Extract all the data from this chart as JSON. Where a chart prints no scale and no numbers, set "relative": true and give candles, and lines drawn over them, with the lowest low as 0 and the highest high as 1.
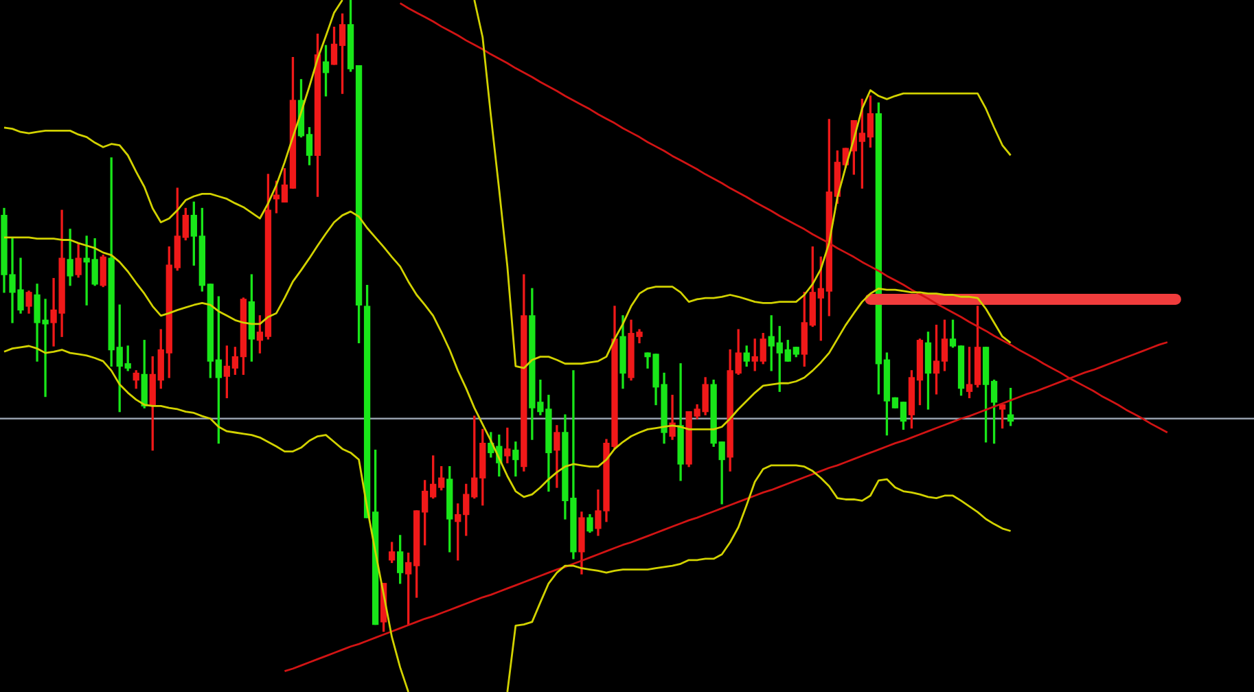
{
  "chart_data": {
    "type": "candlestick",
    "relative": true,
    "categories": [
      null,
      null,
      null,
      null,
      null,
      null,
      null,
      null,
      null,
      null,
      null,
      null,
      null,
      null,
      null,
      null,
      null,
      null,
      null,
      null,
      null,
      null,
      null,
      null,
      null,
      null,
      null,
      null,
      null,
      null,
      null,
      null,
      null,
      null,
      null,
      null,
      null,
      null,
      null,
      null,
      null,
      null,
      null,
      null,
      null,
      null,
      null,
      null,
      null,
      null,
      null,
      null,
      null,
      null,
      null,
      null,
      null,
      null,
      null,
      null,
      null,
      null,
      null,
      null,
      null,
      null,
      null,
      null,
      null,
      null,
      null,
      null,
      null,
      null,
      null,
      null,
      null,
      null,
      null,
      null,
      null,
      null,
      null,
      null,
      null,
      null,
      null,
      null,
      null,
      null,
      null,
      null,
      null,
      null,
      null,
      null,
      null,
      null,
      null,
      null,
      null,
      null,
      null,
      null,
      null,
      null,
      null,
      null,
      null,
      null,
      null,
      null,
      null,
      null,
      null,
      null,
      null,
      null,
      null,
      null,
      null,
      null,
      null,
      null,
      null,
      null,
      null,
      null,
      null,
      null,
      null,
      null,
      null,
      null,
      null,
      null,
      null,
      null,
      null,
      null,
      null,
      null,
      null,
      null,
      null,
      null,
      null,
      null,
      null,
      null,
      null,
      null
    ],
    "ohlc": [
      [
        0.659,
        0.67,
        0.537,
        0.565
      ],
      [
        0.565,
        0.624,
        0.489,
        0.537
      ],
      [
        0.541,
        0.591,
        0.504,
        0.509
      ],
      [
        0.515,
        0.539,
        0.504,
        0.537
      ],
      [
        0.533,
        0.55,
        0.428,
        0.489
      ],
      [
        0.493,
        0.526,
        0.372,
        0.487
      ],
      [
        0.489,
        0.559,
        0.452,
        0.509
      ],
      [
        0.504,
        0.667,
        0.467,
        0.591
      ],
      [
        0.589,
        0.637,
        0.548,
        0.563
      ],
      [
        0.565,
        0.613,
        0.561,
        0.591
      ],
      [
        0.591,
        0.626,
        0.517,
        0.585
      ],
      [
        0.589,
        0.622,
        0.548,
        0.55
      ],
      [
        0.548,
        0.596,
        0.546,
        0.593
      ],
      [
        0.591,
        0.75,
        0.42,
        0.446
      ],
      [
        0.45,
        0.517,
        0.348,
        0.42
      ],
      [
        0.424,
        0.452,
        0.413,
        0.417
      ],
      [
        0.398,
        0.413,
        0.385,
        0.409
      ],
      [
        0.407,
        0.461,
        0.354,
        0.357
      ],
      [
        0.357,
        0.435,
        0.287,
        0.407
      ],
      [
        0.398,
        0.478,
        0.385,
        0.446
      ],
      [
        0.441,
        0.609,
        0.402,
        0.58
      ],
      [
        0.576,
        0.702,
        0.572,
        0.626
      ],
      [
        0.624,
        0.67,
        0.62,
        0.659
      ],
      [
        0.659,
        0.68,
        0.58,
        0.626
      ],
      [
        0.626,
        0.67,
        0.539,
        0.548
      ],
      [
        0.55,
        0.55,
        0.402,
        0.428
      ],
      [
        0.43,
        0.53,
        0.298,
        0.402
      ],
      [
        0.404,
        0.452,
        0.37,
        0.42
      ],
      [
        0.417,
        0.45,
        0.407,
        0.435
      ],
      [
        0.435,
        0.528,
        0.407,
        0.526
      ],
      [
        0.522,
        0.565,
        0.428,
        0.463
      ],
      [
        0.461,
        0.5,
        0.441,
        0.474
      ],
      [
        0.467,
        0.724,
        0.463,
        0.667
      ],
      [
        0.685,
        0.713,
        0.663,
        0.691
      ],
      [
        0.68,
        0.733,
        0.68,
        0.707
      ],
      [
        0.702,
        0.909,
        0.702,
        0.841
      ],
      [
        0.841,
        0.874,
        0.783,
        0.785
      ],
      [
        0.787,
        0.798,
        0.739,
        0.754
      ],
      [
        0.754,
        0.946,
        0.689,
        0.913
      ],
      [
        0.902,
        0.928,
        0.848,
        0.885
      ],
      [
        0.898,
        0.957,
        0.898,
        0.93
      ],
      [
        0.928,
        0.978,
        0.852,
        0.961
      ],
      [
        0.961,
        1.0,
        0.887,
        0.891
      ],
      [
        0.896,
        0.896,
        0.457,
        0.517
      ],
      [
        0.515,
        0.548,
        0.18,
        0.18
      ],
      [
        0.189,
        0.287,
        0.011,
        0.011
      ],
      [
        0.015,
        0.076,
        0.0,
        0.076
      ],
      [
        0.113,
        0.141,
        0.109,
        0.126
      ],
      [
        0.126,
        0.152,
        0.076,
        0.093
      ],
      [
        0.091,
        0.124,
        0.011,
        0.109
      ],
      [
        0.104,
        0.191,
        0.054,
        0.191
      ],
      [
        0.189,
        0.239,
        0.137,
        0.222
      ],
      [
        0.213,
        0.278,
        0.211,
        0.233
      ],
      [
        0.228,
        0.261,
        0.224,
        0.243
      ],
      [
        0.241,
        0.261,
        0.126,
        0.178
      ],
      [
        0.174,
        0.202,
        0.113,
        0.185
      ],
      [
        0.185,
        0.233,
        0.152,
        0.217
      ],
      [
        0.213,
        0.341,
        0.211,
        0.243
      ],
      [
        0.243,
        0.32,
        0.2,
        0.298
      ],
      [
        0.298,
        0.315,
        0.276,
        0.283
      ],
      [
        0.293,
        0.311,
        0.246,
        0.267
      ],
      [
        0.278,
        0.322,
        0.267,
        0.289
      ],
      [
        0.287,
        0.3,
        0.246,
        0.272
      ],
      [
        0.261,
        0.565,
        0.254,
        0.5
      ],
      [
        0.5,
        0.543,
        0.304,
        0.354
      ],
      [
        0.363,
        0.398,
        0.343,
        0.348
      ],
      [
        0.352,
        0.374,
        0.222,
        0.283
      ],
      [
        0.287,
        0.326,
        0.228,
        0.315
      ],
      [
        0.315,
        0.343,
        0.178,
        0.207
      ],
      [
        0.211,
        0.413,
        0.115,
        0.126
      ],
      [
        0.126,
        0.189,
        0.091,
        0.18
      ],
      [
        0.18,
        0.185,
        0.157,
        0.159
      ],
      [
        0.163,
        0.224,
        0.152,
        0.191
      ],
      [
        0.191,
        0.304,
        0.174,
        0.298
      ],
      [
        0.293,
        0.515,
        0.289,
        0.463
      ],
      [
        0.467,
        0.5,
        0.385,
        0.409
      ],
      [
        0.402,
        0.493,
        0.398,
        0.472
      ],
      [
        0.467,
        0.478,
        0.457,
        0.474
      ],
      [
        0.441,
        0.441,
        0.417,
        0.435
      ],
      [
        0.439,
        0.439,
        0.359,
        0.387
      ],
      [
        0.391,
        0.409,
        0.298,
        0.315
      ],
      [
        0.309,
        0.374,
        0.304,
        0.33
      ],
      [
        0.326,
        0.424,
        0.239,
        0.265
      ],
      [
        0.265,
        0.348,
        0.261,
        0.348
      ],
      [
        0.341,
        0.359,
        0.337,
        0.352
      ],
      [
        0.348,
        0.402,
        0.343,
        0.391
      ],
      [
        0.391,
        0.398,
        0.293,
        0.298
      ],
      [
        0.3,
        0.3,
        0.202,
        0.272
      ],
      [
        0.276,
        0.446,
        0.254,
        0.413
      ],
      [
        0.409,
        0.478,
        0.407,
        0.441
      ],
      [
        0.441,
        0.452,
        0.42,
        0.428
      ],
      [
        0.428,
        0.463,
        0.413,
        0.435
      ],
      [
        0.428,
        0.472,
        0.424,
        0.463
      ],
      [
        0.467,
        0.5,
        0.413,
        0.452
      ],
      [
        0.457,
        0.483,
        0.38,
        0.441
      ],
      [
        0.446,
        0.461,
        0.428,
        0.428
      ],
      [
        0.45,
        0.45,
        0.435,
        0.439
      ],
      [
        0.439,
        0.537,
        0.42,
        0.489
      ],
      [
        0.485,
        0.609,
        0.483,
        0.537
      ],
      [
        0.528,
        0.593,
        0.461,
        0.543
      ],
      [
        0.539,
        0.811,
        0.5,
        0.696
      ],
      [
        0.689,
        0.761,
        0.678,
        0.743
      ],
      [
        0.739,
        0.765,
        0.735,
        0.765
      ],
      [
        0.761,
        0.809,
        0.724,
        0.809
      ],
      [
        0.776,
        0.843,
        0.702,
        0.789
      ],
      [
        0.783,
        0.848,
        0.767,
        0.82
      ],
      [
        0.82,
        0.837,
        0.376,
        0.424
      ],
      [
        0.43,
        0.441,
        0.311,
        0.365
      ],
      [
        0.37,
        0.37,
        0.354,
        0.354
      ],
      [
        0.363,
        0.363,
        0.32,
        0.333
      ],
      [
        0.343,
        0.413,
        0.322,
        0.402
      ],
      [
        0.398,
        0.463,
        0.359,
        0.461
      ],
      [
        0.457,
        0.474,
        0.352,
        0.409
      ],
      [
        0.409,
        0.485,
        0.376,
        0.428
      ],
      [
        0.428,
        0.493,
        0.413,
        0.463
      ],
      [
        0.463,
        0.493,
        0.45,
        0.452
      ],
      [
        0.452,
        0.452,
        0.374,
        0.385
      ],
      [
        0.38,
        0.45,
        0.37,
        0.391
      ],
      [
        0.391,
        0.515,
        0.387,
        0.45
      ],
      [
        0.45,
        0.45,
        0.3,
        0.391
      ],
      [
        0.396,
        0.398,
        0.298,
        0.363
      ],
      [
        0.352,
        0.359,
        0.322,
        0.359
      ],
      [
        0.343,
        0.385,
        0.326,
        0.333
      ],
      null,
      null,
      null,
      null,
      null,
      null,
      null,
      null,
      null,
      null,
      null,
      null,
      null,
      null,
      null,
      null,
      null,
      null,
      null,
      null,
      null,
      null,
      null,
      null,
      null,
      null,
      null,
      null,
      null
    ],
    "colors": [
      "#19e619",
      "#19e619",
      "#19e619",
      "#f01919",
      "#19e619",
      "#19e619",
      "#f01919",
      "#f01919",
      "#19e619",
      "#f01919",
      "#19e619",
      "#19e619",
      "#f01919",
      "#19e619",
      "#19e619",
      "#19e619",
      "#f01919",
      "#19e619",
      "#f01919",
      "#f01919",
      "#f01919",
      "#f01919",
      "#f01919",
      "#19e619",
      "#19e619",
      "#19e619",
      "#19e619",
      "#f01919",
      "#f01919",
      "#f01919",
      "#19e619",
      "#f01919",
      "#f01919",
      "#f01919",
      "#f01919",
      "#f01919",
      "#19e619",
      "#19e619",
      "#f01919",
      "#19e619",
      "#f01919",
      "#f01919",
      "#19e619",
      "#19e619",
      "#19e619",
      "#19e619",
      "#f01919",
      "#f01919",
      "#19e619",
      "#f01919",
      "#f01919",
      "#f01919",
      "#f01919",
      "#f01919",
      "#19e619",
      "#f01919",
      "#f01919",
      "#f01919",
      "#f01919",
      "#19e619",
      "#19e619",
      "#f01919",
      "#19e619",
      "#f01919",
      "#19e619",
      "#19e619",
      "#19e619",
      "#f01919",
      "#19e619",
      "#19e619",
      "#f01919",
      "#19e619",
      "#f01919",
      "#f01919",
      "#f01919",
      "#19e619",
      "#f01919",
      "#f01919",
      "#19e619",
      "#19e619",
      "#19e619",
      "#f01919",
      "#19e619",
      "#f01919",
      "#f01919",
      "#f01919",
      "#19e619",
      "#19e619",
      "#f01919",
      "#f01919",
      "#19e619",
      "#f01919",
      "#f01919",
      "#19e619",
      "#19e619",
      "#19e619",
      "#19e619",
      "#f01919",
      "#f01919",
      "#f01919",
      "#f01919",
      "#f01919",
      "#f01919",
      "#f01919",
      "#f01919",
      "#f01919",
      "#19e619",
      "#19e619",
      "#19e619",
      "#19e619",
      "#f01919",
      "#f01919",
      "#19e619",
      "#f01919",
      "#f01919",
      "#19e619",
      "#19e619",
      "#f01919",
      "#f01919",
      "#19e619",
      "#19e619",
      "#f01919",
      "#19e619",
      null,
      null,
      null,
      null,
      null,
      null,
      null,
      null,
      null,
      null,
      null,
      null,
      null,
      null,
      null,
      null,
      null,
      null,
      null,
      null,
      null,
      null,
      null,
      null,
      null,
      null,
      null,
      null,
      null
    ],
    "series": [
      {
        "type": "line",
        "color": "#d2d200",
        "values": [
          0.798,
          0.796,
          0.791,
          0.789,
          0.791,
          0.793,
          0.793,
          0.793,
          0.793,
          0.787,
          0.783,
          0.774,
          0.767,
          0.772,
          0.77,
          0.754,
          0.728,
          0.704,
          0.67,
          0.648,
          0.654,
          0.667,
          0.683,
          0.689,
          0.693,
          0.693,
          0.689,
          0.685,
          0.678,
          0.672,
          0.663,
          0.654,
          0.678,
          0.707,
          0.743,
          0.783,
          0.822,
          0.863,
          0.907,
          0.943,
          0.98,
          1.0,
          null,
          null,
          null,
          null,
          null,
          null,
          null,
          null,
          null,
          null,
          null,
          null,
          null,
          null,
          null,
          1.0,
          0.941,
          0.817,
          0.7,
          0.578,
          0.42,
          0.417,
          0.43,
          0.435,
          0.435,
          0.43,
          0.424,
          0.424,
          0.424,
          0.426,
          0.428,
          0.435,
          0.463,
          0.487,
          0.515,
          0.535,
          0.543,
          0.546,
          0.546,
          0.546,
          0.537,
          0.522,
          0.526,
          0.528,
          0.528,
          0.53,
          0.533,
          0.53,
          0.526,
          0.522,
          0.52,
          0.52,
          0.522,
          0.522,
          0.522,
          0.533,
          0.55,
          0.574,
          0.615,
          0.687,
          0.735,
          0.78,
          0.828,
          0.857,
          0.848,
          0.843,
          0.848,
          0.852,
          0.852,
          0.852,
          0.852,
          0.852,
          0.852,
          0.852,
          0.852,
          0.852,
          0.852,
          0.828,
          0.798,
          0.77,
          0.754,
          null,
          null,
          null,
          null,
          null,
          null,
          null,
          null,
          null,
          null,
          null,
          null,
          null,
          null,
          null,
          null,
          null,
          null,
          null,
          null,
          null,
          null,
          null,
          null,
          null,
          null,
          null,
          null,
          null
        ]
      },
      {
        "type": "line",
        "color": "#d2d200",
        "values": [
          0.624,
          0.624,
          0.624,
          0.624,
          0.622,
          0.622,
          0.622,
          0.62,
          0.62,
          0.615,
          0.611,
          0.607,
          0.6,
          0.596,
          0.585,
          0.57,
          0.552,
          0.535,
          0.515,
          0.5,
          0.504,
          0.509,
          0.513,
          0.517,
          0.52,
          0.517,
          0.507,
          0.5,
          0.493,
          0.489,
          0.487,
          0.487,
          0.498,
          0.504,
          0.528,
          0.554,
          0.572,
          0.591,
          0.611,
          0.63,
          0.648,
          0.659,
          0.665,
          0.657,
          0.639,
          0.624,
          0.609,
          0.593,
          0.578,
          0.554,
          0.533,
          0.517,
          0.5,
          0.474,
          0.446,
          0.413,
          0.385,
          0.354,
          0.328,
          0.302,
          0.274,
          0.246,
          0.222,
          0.213,
          0.217,
          0.228,
          0.241,
          0.252,
          0.261,
          0.265,
          0.263,
          0.261,
          0.261,
          0.272,
          0.289,
          0.3,
          0.309,
          0.315,
          0.32,
          0.322,
          0.324,
          0.326,
          0.324,
          0.32,
          0.32,
          0.32,
          0.32,
          0.324,
          0.337,
          0.352,
          0.365,
          0.378,
          0.389,
          0.391,
          0.393,
          0.393,
          0.396,
          0.402,
          0.413,
          0.426,
          0.441,
          0.463,
          0.485,
          0.504,
          0.522,
          0.535,
          0.543,
          0.541,
          0.541,
          0.539,
          0.537,
          0.537,
          0.535,
          0.535,
          0.533,
          0.533,
          0.53,
          0.53,
          0.528,
          0.511,
          0.489,
          0.467,
          0.457,
          null,
          null,
          null,
          null,
          null,
          null,
          null,
          null,
          null,
          null,
          null,
          null,
          null,
          null,
          null,
          null,
          null,
          null,
          null,
          null,
          null,
          null,
          null,
          null,
          null,
          null,
          null,
          null,
          null
        ]
      },
      {
        "type": "line",
        "color": "#d2d200",
        "values": [
          0.443,
          0.448,
          0.45,
          0.452,
          0.448,
          0.441,
          0.443,
          0.446,
          0.441,
          0.439,
          0.437,
          0.433,
          0.428,
          0.413,
          0.391,
          0.378,
          0.367,
          0.359,
          0.357,
          0.357,
          0.354,
          0.352,
          0.348,
          0.346,
          0.341,
          0.337,
          0.324,
          0.317,
          0.315,
          0.313,
          0.311,
          0.307,
          0.3,
          0.293,
          0.285,
          0.285,
          0.291,
          0.302,
          0.309,
          0.311,
          0.3,
          0.289,
          0.283,
          0.272,
          0.196,
          0.126,
          0.059,
          -0.009,
          -0.057,
          -0.096,
          null,
          null,
          null,
          null,
          null,
          null,
          null,
          null,
          null,
          null,
          null,
          -0.096,
          0.009,
          0.011,
          0.015,
          0.046,
          0.076,
          0.093,
          0.104,
          0.104,
          0.1,
          0.098,
          0.096,
          0.093,
          0.096,
          0.098,
          0.098,
          0.098,
          0.098,
          0.1,
          0.102,
          0.104,
          0.107,
          0.113,
          0.113,
          0.115,
          0.115,
          0.122,
          0.141,
          0.165,
          0.2,
          0.237,
          0.257,
          0.263,
          0.263,
          0.263,
          0.263,
          0.261,
          0.254,
          0.243,
          0.23,
          0.211,
          0.209,
          0.209,
          0.207,
          0.215,
          0.239,
          0.241,
          0.228,
          0.222,
          0.22,
          0.217,
          0.213,
          0.211,
          0.215,
          0.215,
          0.207,
          0.198,
          0.189,
          0.178,
          0.17,
          0.163,
          0.159,
          null,
          null,
          null,
          null,
          null,
          null,
          null,
          null,
          null,
          null,
          null,
          null,
          null,
          null,
          null,
          null,
          null,
          null,
          null,
          null,
          null,
          null,
          null,
          null,
          null,
          null,
          null,
          null,
          null
        ]
      },
      {
        "type": "line",
        "color": "#d21414",
        "values": [
          null,
          null,
          null,
          null,
          null,
          null,
          null,
          null,
          null,
          null,
          null,
          null,
          null,
          null,
          null,
          null,
          null,
          null,
          null,
          null,
          null,
          null,
          null,
          null,
          null,
          null,
          null,
          null,
          null,
          null,
          null,
          null,
          null,
          null,
          -0.063,
          -0.059,
          -0.054,
          -0.049,
          -0.044,
          -0.039,
          -0.034,
          -0.029,
          -0.024,
          -0.02,
          -0.015,
          -0.01,
          -0.005,
          0.0,
          0.005,
          0.01,
          0.015,
          0.02,
          0.024,
          0.029,
          0.034,
          0.039,
          0.044,
          0.049,
          0.054,
          0.058,
          0.063,
          0.068,
          0.073,
          0.078,
          0.083,
          0.088,
          0.093,
          0.098,
          0.102,
          0.107,
          0.112,
          0.117,
          0.122,
          0.127,
          0.132,
          0.137,
          0.141,
          0.146,
          0.151,
          0.156,
          0.161,
          0.166,
          0.171,
          0.176,
          0.18,
          0.185,
          0.19,
          0.195,
          0.2,
          0.205,
          0.21,
          0.215,
          0.22,
          0.224,
          0.229,
          0.234,
          0.239,
          0.244,
          0.249,
          0.254,
          0.259,
          0.263,
          0.268,
          0.273,
          0.278,
          0.283,
          0.288,
          0.293,
          0.298,
          0.302,
          0.307,
          0.312,
          0.317,
          0.322,
          0.327,
          0.332,
          0.337,
          0.341,
          0.346,
          0.351,
          0.356,
          0.361,
          0.366,
          0.371,
          0.376,
          0.38,
          0.385,
          0.39,
          0.395,
          0.4,
          0.405,
          0.41,
          0.414,
          0.419,
          0.424,
          0.429,
          0.434,
          0.439,
          0.444,
          0.449,
          0.454,
          0.458,
          null,
          null,
          null,
          null,
          null,
          null,
          null,
          null,
          null,
          null
        ]
      },
      {
        "type": "line",
        "color": "#d21414",
        "values": [
          null,
          null,
          null,
          null,
          null,
          null,
          null,
          null,
          null,
          null,
          null,
          null,
          null,
          null,
          null,
          null,
          null,
          null,
          null,
          null,
          null,
          null,
          null,
          null,
          null,
          null,
          null,
          null,
          null,
          null,
          null,
          null,
          null,
          null,
          null,
          null,
          null,
          null,
          null,
          null,
          null,
          null,
          null,
          null,
          null,
          null,
          null,
          null,
          0.995,
          0.987,
          0.98,
          0.973,
          0.966,
          0.958,
          0.951,
          0.944,
          0.936,
          0.929,
          0.922,
          0.914,
          0.907,
          0.9,
          0.892,
          0.885,
          0.878,
          0.87,
          0.863,
          0.856,
          0.848,
          0.841,
          0.834,
          0.827,
          0.819,
          0.812,
          0.805,
          0.797,
          0.79,
          0.783,
          0.775,
          0.768,
          0.761,
          0.753,
          0.746,
          0.739,
          0.732,
          0.724,
          0.717,
          0.71,
          0.702,
          0.695,
          0.688,
          0.68,
          0.673,
          0.666,
          0.658,
          0.651,
          0.644,
          0.637,
          0.629,
          0.622,
          0.615,
          0.607,
          0.6,
          0.593,
          0.585,
          0.578,
          0.571,
          0.563,
          0.556,
          0.549,
          0.541,
          0.534,
          0.527,
          0.519,
          0.512,
          0.505,
          0.498,
          0.49,
          0.483,
          0.476,
          0.468,
          0.461,
          0.454,
          0.446,
          0.439,
          0.432,
          0.424,
          0.417,
          0.41,
          0.402,
          0.395,
          0.388,
          0.381,
          0.373,
          0.366,
          0.359,
          0.351,
          0.344,
          0.337,
          0.329,
          0.322,
          0.315,
          null,
          null,
          null,
          null,
          null,
          null,
          null,
          null,
          null,
          null
        ]
      },
      {
        "type": "line",
        "color": "#f03c3c",
        "values": [
          null,
          null,
          null,
          null,
          null,
          null,
          null,
          null,
          null,
          null,
          null,
          null,
          null,
          null,
          null,
          null,
          null,
          null,
          null,
          null,
          null,
          null,
          null,
          null,
          null,
          null,
          null,
          null,
          null,
          null,
          null,
          null,
          null,
          null,
          null,
          null,
          null,
          null,
          null,
          null,
          null,
          null,
          null,
          null,
          null,
          null,
          null,
          null,
          null,
          null,
          null,
          null,
          null,
          null,
          null,
          null,
          null,
          null,
          null,
          null,
          null,
          null,
          null,
          null,
          null,
          null,
          null,
          null,
          null,
          null,
          null,
          null,
          null,
          null,
          null,
          null,
          null,
          null,
          null,
          null,
          null,
          null,
          null,
          null,
          null,
          null,
          null,
          null,
          null,
          null,
          null,
          null,
          null,
          null,
          null,
          null,
          null,
          null,
          null,
          null,
          null,
          null,
          null,
          null,
          null,
          0.526,
          0.526,
          0.526,
          0.526,
          0.526,
          0.526,
          0.526,
          0.526,
          0.526,
          0.526,
          0.526,
          0.526,
          0.526,
          0.526,
          0.526,
          0.526,
          0.526,
          0.526,
          0.526,
          0.526,
          0.526,
          0.526,
          0.526,
          0.526,
          0.526,
          0.526,
          0.526,
          0.526,
          0.526,
          0.526,
          0.526,
          0.526,
          0.526,
          0.526,
          0.526,
          0.526,
          0.526,
          0.526,
          null,
          null,
          null,
          null,
          null,
          null,
          null,
          null,
          null
        ]
      }
    ],
    "ref_lines": [
      {
        "axis": "y",
        "value": 0.337,
        "color": "#96a0ad"
      }
    ]
  }
}
